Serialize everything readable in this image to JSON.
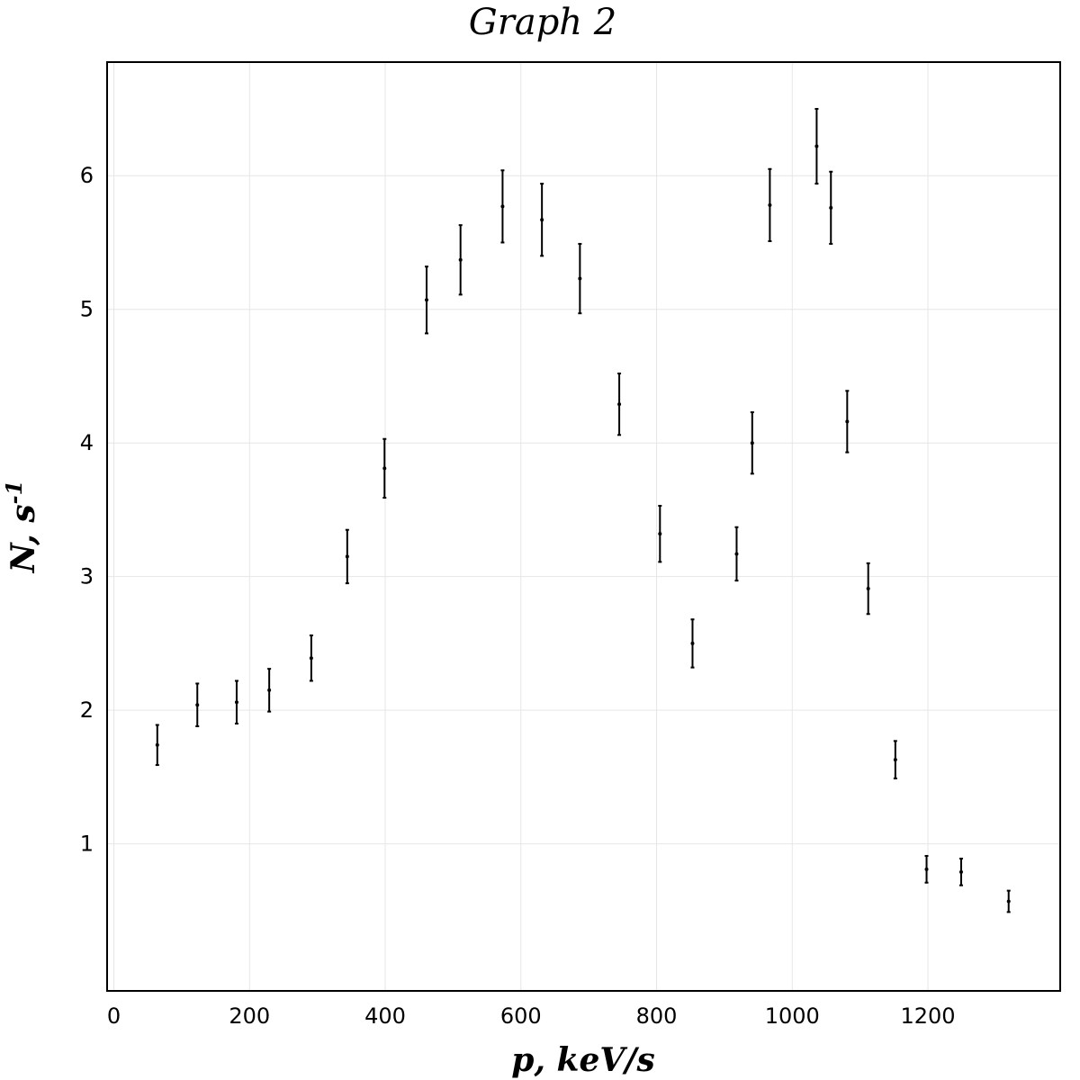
{
  "chart_data": {
    "type": "scatter",
    "title": "Graph 2",
    "xlabel": "p, keV/s",
    "ylabel": "N, s^-1",
    "xlim": [
      -10,
      1395
    ],
    "ylim": [
      -0.1,
      6.85
    ],
    "grid": true,
    "x_ticks": [
      0,
      200,
      400,
      600,
      800,
      1000,
      1200
    ],
    "y_ticks": [
      1,
      2,
      3,
      4,
      5,
      6
    ],
    "points": [
      {
        "x": 64,
        "y": 1.74,
        "err": 0.15
      },
      {
        "x": 123,
        "y": 2.04,
        "err": 0.16
      },
      {
        "x": 181,
        "y": 2.06,
        "err": 0.16
      },
      {
        "x": 229,
        "y": 2.15,
        "err": 0.16
      },
      {
        "x": 291,
        "y": 2.39,
        "err": 0.17
      },
      {
        "x": 344,
        "y": 3.15,
        "err": 0.2
      },
      {
        "x": 399,
        "y": 3.81,
        "err": 0.22
      },
      {
        "x": 461,
        "y": 5.07,
        "err": 0.25
      },
      {
        "x": 511,
        "y": 5.37,
        "err": 0.26
      },
      {
        "x": 573,
        "y": 5.77,
        "err": 0.27
      },
      {
        "x": 631,
        "y": 5.67,
        "err": 0.27
      },
      {
        "x": 687,
        "y": 5.23,
        "err": 0.26
      },
      {
        "x": 745,
        "y": 4.29,
        "err": 0.23
      },
      {
        "x": 805,
        "y": 3.32,
        "err": 0.21
      },
      {
        "x": 853,
        "y": 2.5,
        "err": 0.18
      },
      {
        "x": 918,
        "y": 3.17,
        "err": 0.2
      },
      {
        "x": 941,
        "y": 4.0,
        "err": 0.23
      },
      {
        "x": 967,
        "y": 5.78,
        "err": 0.27
      },
      {
        "x": 1036,
        "y": 6.22,
        "err": 0.28
      },
      {
        "x": 1057,
        "y": 5.76,
        "err": 0.27
      },
      {
        "x": 1081,
        "y": 4.16,
        "err": 0.23
      },
      {
        "x": 1112,
        "y": 2.91,
        "err": 0.19
      },
      {
        "x": 1152,
        "y": 1.63,
        "err": 0.14
      },
      {
        "x": 1198,
        "y": 0.81,
        "err": 0.1
      },
      {
        "x": 1249,
        "y": 0.79,
        "err": 0.1
      },
      {
        "x": 1319,
        "y": 0.57,
        "err": 0.08
      }
    ]
  }
}
